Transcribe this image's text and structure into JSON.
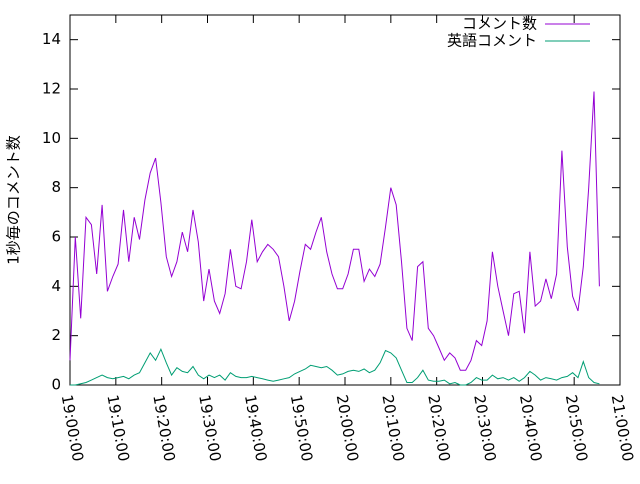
{
  "chart_data": {
    "type": "line",
    "ylabel": "1秒毎のコメント数",
    "x": [
      "19:00:00",
      "19:01:10",
      "19:02:20",
      "19:03:30",
      "19:04:40",
      "19:05:50",
      "19:07:00",
      "19:08:10",
      "19:09:20",
      "19:10:30",
      "19:11:40",
      "19:12:50",
      "19:14:00",
      "19:15:10",
      "19:16:20",
      "19:17:30",
      "19:18:40",
      "19:19:50",
      "19:21:00",
      "19:22:10",
      "19:23:20",
      "19:24:30",
      "19:25:40",
      "19:26:50",
      "19:28:00",
      "19:29:10",
      "19:30:20",
      "19:31:30",
      "19:32:40",
      "19:33:50",
      "19:35:00",
      "19:36:10",
      "19:37:20",
      "19:38:30",
      "19:39:40",
      "19:40:50",
      "19:42:00",
      "19:43:10",
      "19:44:20",
      "19:45:30",
      "19:46:40",
      "19:47:50",
      "19:49:00",
      "19:50:10",
      "19:51:20",
      "19:52:30",
      "19:53:40",
      "19:54:50",
      "19:56:00",
      "19:57:10",
      "19:58:20",
      "19:59:30",
      "20:00:40",
      "20:01:50",
      "20:03:00",
      "20:04:10",
      "20:05:20",
      "20:06:30",
      "20:07:40",
      "20:08:50",
      "20:10:00",
      "20:11:10",
      "20:12:20",
      "20:13:30",
      "20:14:40",
      "20:15:50",
      "20:17:00",
      "20:18:10",
      "20:19:20",
      "20:20:30",
      "20:21:40",
      "20:22:50",
      "20:24:00",
      "20:25:10",
      "20:26:20",
      "20:27:30",
      "20:28:40",
      "20:29:50",
      "20:31:00",
      "20:32:10",
      "20:33:20",
      "20:34:30",
      "20:35:40",
      "20:36:50",
      "20:38:00",
      "20:39:10",
      "20:40:20",
      "20:41:30",
      "20:42:40",
      "20:43:50",
      "20:45:00",
      "20:46:10",
      "20:47:20",
      "20:48:30",
      "20:49:40",
      "20:50:50",
      "20:52:00",
      "20:53:10",
      "20:54:20",
      "20:55:30"
    ],
    "series": [
      {
        "name": "コメント数",
        "color": "#9400d3",
        "values": [
          1.0,
          6.0,
          2.7,
          6.8,
          6.5,
          4.5,
          7.3,
          3.8,
          4.4,
          4.9,
          7.1,
          5.0,
          6.8,
          5.9,
          7.5,
          8.6,
          9.2,
          7.4,
          5.2,
          4.4,
          5.0,
          6.2,
          5.4,
          7.1,
          5.8,
          3.4,
          4.7,
          3.4,
          2.9,
          3.7,
          5.5,
          4.0,
          3.9,
          5.0,
          6.7,
          5.0,
          5.4,
          5.7,
          5.5,
          5.2,
          4.0,
          2.6,
          3.4,
          4.6,
          5.7,
          5.5,
          6.2,
          6.8,
          5.4,
          4.5,
          3.9,
          3.9,
          4.5,
          5.5,
          5.5,
          4.2,
          4.7,
          4.4,
          4.9,
          6.4,
          8.0,
          7.3,
          5.0,
          2.3,
          1.8,
          4.8,
          5.0,
          2.3,
          2.0,
          1.5,
          1.0,
          1.3,
          1.1,
          0.6,
          0.6,
          1.0,
          1.8,
          1.6,
          2.6,
          5.4,
          4.0,
          3.0,
          2.0,
          3.7,
          3.8,
          2.1,
          5.4,
          3.2,
          3.4,
          4.3,
          3.5,
          4.5,
          9.5,
          5.6,
          3.6,
          3.0,
          4.8,
          8.0,
          11.9,
          4.0
        ]
      },
      {
        "name": "英語コメント",
        "color": "#009e73",
        "values": [
          0,
          0,
          0.05,
          0.1,
          0.2,
          0.3,
          0.4,
          0.3,
          0.25,
          0.3,
          0.35,
          0.25,
          0.4,
          0.5,
          0.9,
          1.3,
          1.0,
          1.45,
          0.9,
          0.4,
          0.7,
          0.55,
          0.5,
          0.75,
          0.4,
          0.25,
          0.4,
          0.3,
          0.4,
          0.2,
          0.5,
          0.35,
          0.3,
          0.3,
          0.35,
          0.3,
          0.25,
          0.2,
          0.15,
          0.2,
          0.25,
          0.3,
          0.45,
          0.55,
          0.65,
          0.8,
          0.75,
          0.7,
          0.75,
          0.6,
          0.4,
          0.45,
          0.55,
          0.6,
          0.55,
          0.65,
          0.5,
          0.6,
          0.9,
          1.4,
          1.3,
          1.1,
          0.6,
          0.1,
          0.1,
          0.3,
          0.6,
          0.2,
          0.15,
          0.15,
          0.2,
          0.05,
          0.1,
          0,
          0,
          0.1,
          0.3,
          0.2,
          0.2,
          0.4,
          0.25,
          0.3,
          0.2,
          0.3,
          0.15,
          0.3,
          0.55,
          0.4,
          0.2,
          0.3,
          0.25,
          0.2,
          0.3,
          0.35,
          0.5,
          0.3,
          0.95,
          0.3,
          0.1,
          0.05
        ]
      }
    ],
    "xlim": [
      "19:00:00",
      "21:00:00"
    ],
    "xticks": [
      "19:00:00",
      "19:10:00",
      "19:20:00",
      "19:30:00",
      "19:40:00",
      "19:50:00",
      "20:00:00",
      "20:10:00",
      "20:20:00",
      "20:30:00",
      "20:40:00",
      "20:50:00",
      "21:00:00"
    ],
    "ylim": [
      0,
      15
    ],
    "yticks": [
      0,
      2,
      4,
      6,
      8,
      10,
      12,
      14
    ],
    "legend": "top-right"
  }
}
